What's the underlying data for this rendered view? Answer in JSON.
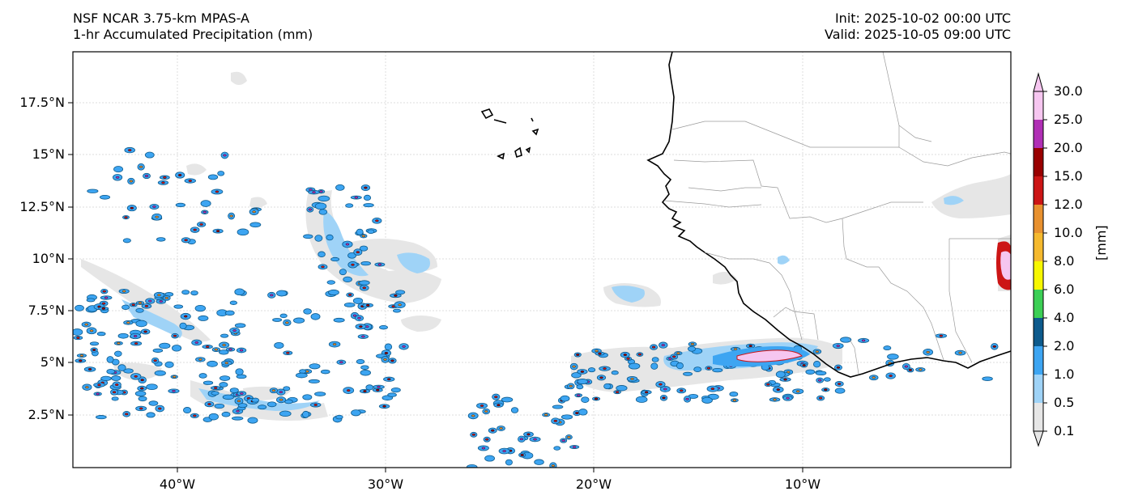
{
  "header": {
    "model_title": "NSF NCAR 3.75-km MPAS-A",
    "field_title": "1-hr Accumulated Precipitation (mm)",
    "init_label": "Init: 2025-10-02 00:00 UTC",
    "valid_label": "Valid: 2025-10-05 09:00 UTC"
  },
  "axes": {
    "lat_ticks": [
      "17.5°N",
      "15°N",
      "12.5°N",
      "10°N",
      "7.5°N",
      "5°N",
      "2.5°N"
    ],
    "lon_ticks": [
      "40°W",
      "30°W",
      "20°W",
      "10°W"
    ]
  },
  "colorbar": {
    "units_label": "[mm]",
    "levels": [
      "0.1",
      "0.5",
      "1.0",
      "2.0",
      "4.0",
      "6.0",
      "8.0",
      "10.0",
      "12.0",
      "15.0",
      "20.0",
      "25.0",
      "30.0"
    ],
    "colors": [
      "#e6e6e6",
      "#9fd3f7",
      "#3da5f2",
      "#0d5a8c",
      "#3ccf55",
      "#f7f700",
      "#f5b92e",
      "#e8912f",
      "#cc1515",
      "#990000",
      "#b02fb5",
      "#f6c6f0"
    ]
  },
  "map": {
    "land_border_color": "#000000",
    "country_border_color": "#9a9a9a",
    "gridline_color": "#dddddd"
  }
}
